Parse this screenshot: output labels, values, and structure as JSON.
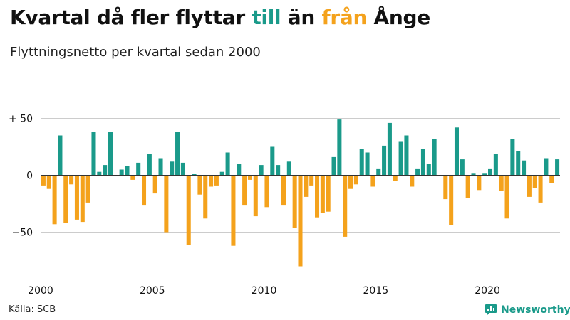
{
  "title": {
    "prefix": "Kvartal då fler flyttar ",
    "till": "till",
    "middle": " än ",
    "fran": "från",
    "suffix": " Ånge"
  },
  "subtitle": "Flyttningsnetto per kvartal sedan 2000",
  "source": "Källa: SCB",
  "brand": {
    "name": "Newsworthy",
    "icon": "newsworthy-chart-icon"
  },
  "colors": {
    "positive": "#1a9a8a",
    "negative": "#f4a21c",
    "grid": "#cccccc",
    "text": "#111111",
    "zero_line": "#333333"
  },
  "chart_data": {
    "type": "bar",
    "title": "Kvartal då fler flyttar till än från Ånge",
    "subtitle": "Flyttningsnetto per kvartal sedan 2000",
    "xlabel": "",
    "ylabel": "",
    "ylim": [
      -85,
      55
    ],
    "xlim": [
      2000,
      2023.75
    ],
    "grid": true,
    "y_ticks": [
      {
        "value": 50,
        "label": "+ 50"
      },
      {
        "value": 0,
        "label": "0"
      },
      {
        "value": -50,
        "label": "−50"
      }
    ],
    "x_ticks": [
      {
        "value": 2000,
        "label": "2000"
      },
      {
        "value": 2005,
        "label": "2005"
      },
      {
        "value": 2010,
        "label": "2010"
      },
      {
        "value": 2015,
        "label": "2015"
      },
      {
        "value": 2020,
        "label": "2020"
      }
    ],
    "series": [
      {
        "start_year": 2000,
        "values": [
          -9,
          -12,
          -43,
          35,
          -42,
          -8,
          -39,
          -41,
          -24,
          38,
          3,
          9,
          38,
          0,
          5,
          8,
          -4,
          11,
          -26,
          19,
          -16,
          15,
          -50,
          12,
          38,
          11,
          -61,
          1,
          -17,
          -38,
          -10,
          -9,
          3,
          20,
          -62,
          10,
          -26,
          -4,
          -36,
          9,
          -28,
          25,
          9,
          -26,
          12,
          -46,
          -80,
          -19,
          -9,
          -37,
          -33,
          -32,
          16,
          49,
          -54,
          -12,
          -8,
          23,
          20,
          -10,
          6,
          26,
          46,
          -5,
          30,
          35,
          -10,
          6,
          23,
          10,
          32,
          0,
          -21,
          -44,
          42,
          14,
          -20,
          2,
          -13,
          2,
          6,
          19,
          -14,
          -38,
          32,
          21,
          13,
          -19,
          -11,
          -24,
          15,
          -7,
          14
        ]
      }
    ]
  }
}
